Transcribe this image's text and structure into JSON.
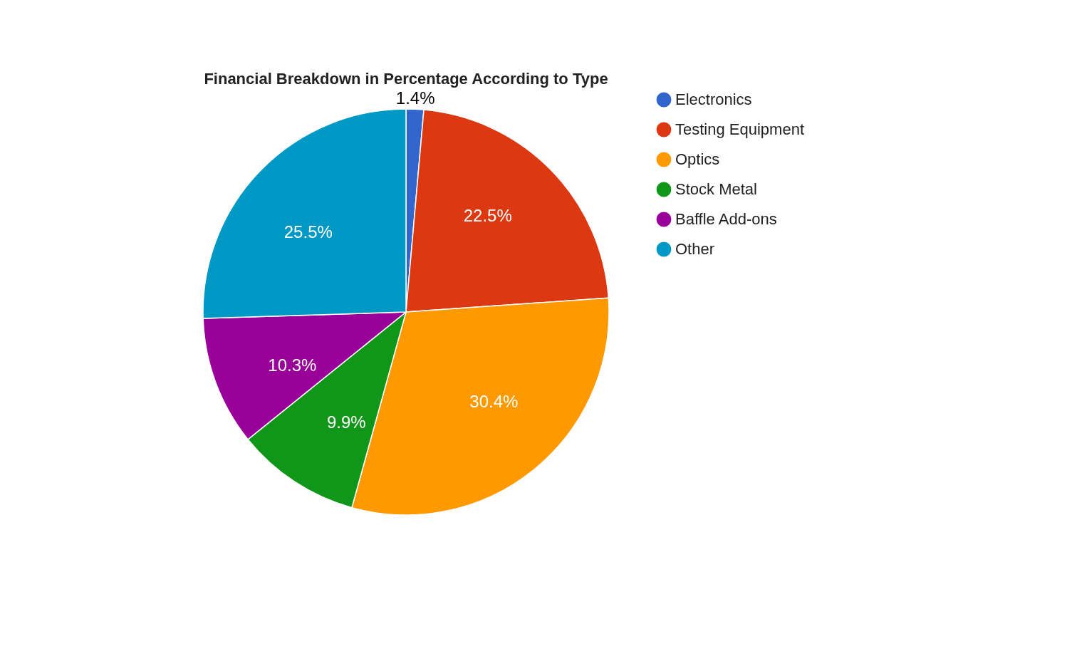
{
  "chart_data": {
    "type": "pie",
    "title": "Financial Breakdown in Percentage According to Type",
    "categories": [
      "Electronics",
      "Testing Equipment",
      "Optics",
      "Stock Metal",
      "Baffle Add-ons",
      "Other"
    ],
    "values": [
      1.4,
      22.5,
      30.4,
      9.9,
      10.3,
      25.5
    ],
    "value_labels": [
      "1.4%",
      "22.5%",
      "30.4%",
      "9.9%",
      "10.3%",
      "25.5%"
    ],
    "colors": [
      "#3366cc",
      "#dc3912",
      "#ff9900",
      "#109618",
      "#990099",
      "#0099c6"
    ],
    "legend": "top right"
  }
}
